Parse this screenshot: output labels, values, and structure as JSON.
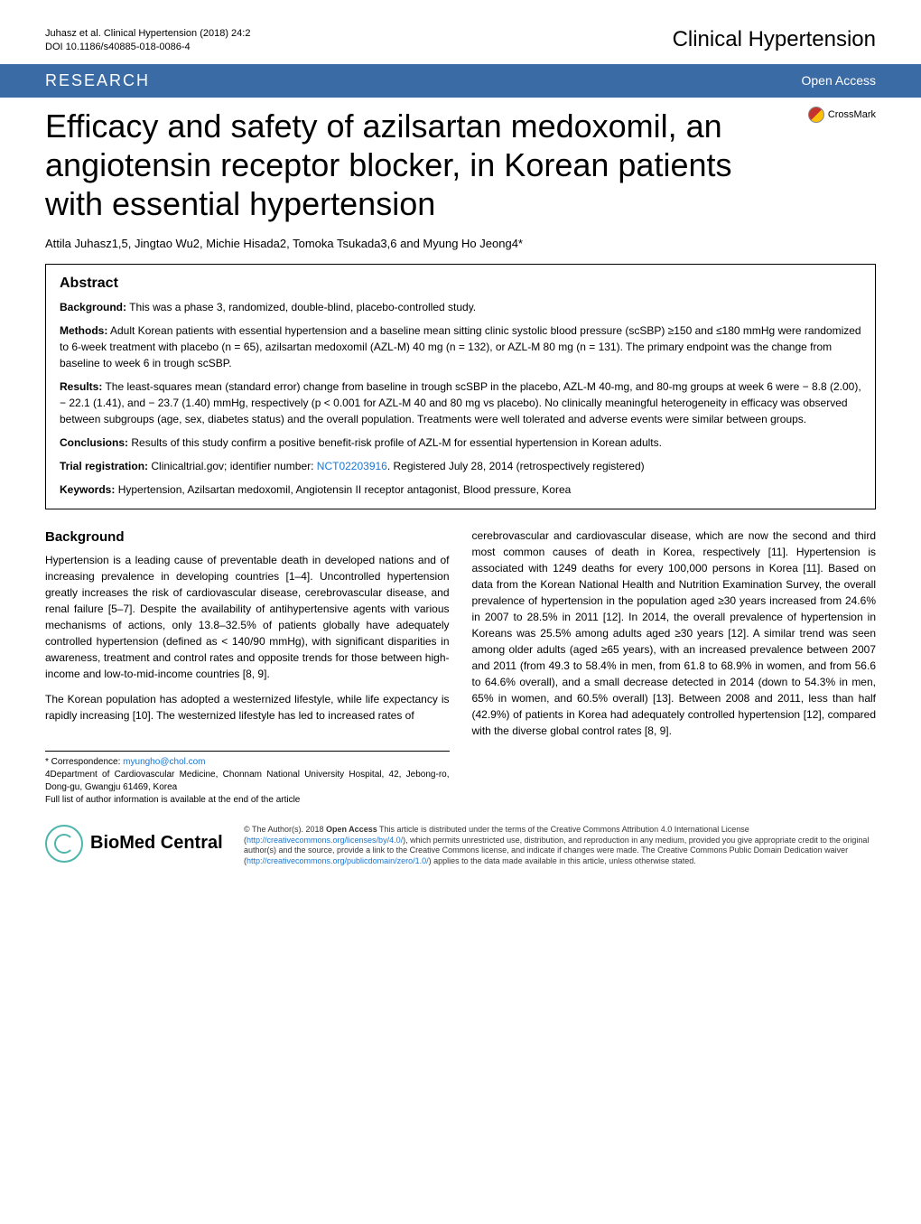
{
  "header": {
    "citation": "Juhasz et al. Clinical Hypertension  (2018) 24:2",
    "doi": "DOI 10.1186/s40885-018-0086-4",
    "journal": "Clinical Hypertension"
  },
  "bar": {
    "research": "RESEARCH",
    "openaccess": "Open Access"
  },
  "crossmark": "CrossMark",
  "title": "Efficacy and safety of azilsartan medoxomil, an angiotensin receptor blocker, in Korean patients with essential hypertension",
  "authors": "Attila Juhasz1,5, Jingtao Wu2, Michie Hisada2, Tomoka Tsukada3,6 and Myung Ho Jeong4*",
  "abstract": {
    "heading": "Abstract",
    "background_label": "Background:",
    "background_text": " This was a phase 3, randomized, double-blind, placebo-controlled study.",
    "methods_label": "Methods:",
    "methods_text": " Adult Korean patients with essential hypertension and a baseline mean sitting clinic systolic blood pressure (scSBP) ≥150 and ≤180 mmHg were randomized to 6-week treatment with placebo (n = 65), azilsartan medoxomil (AZL-M) 40 mg (n = 132), or AZL-M 80 mg (n = 131). The primary endpoint was the change from baseline to week 6 in trough scSBP.",
    "results_label": "Results:",
    "results_text": " The least-squares mean (standard error) change from baseline in trough scSBP in the placebo, AZL-M 40-mg, and 80-mg groups at week 6 were − 8.8 (2.00), − 22.1 (1.41), and − 23.7 (1.40) mmHg, respectively (p < 0.001 for AZL-M 40 and 80 mg vs placebo). No clinically meaningful heterogeneity in efficacy was observed between subgroups (age, sex, diabetes status) and the overall population. Treatments were well tolerated and adverse events were similar between groups.",
    "conclusions_label": "Conclusions:",
    "conclusions_text": " Results of this study confirm a positive benefit-risk profile of AZL-M for essential hypertension in Korean adults.",
    "trial_label": "Trial registration:",
    "trial_text_before": " Clinicaltrial.gov; identifier number: ",
    "trial_link": "NCT02203916",
    "trial_text_after": ". Registered July 28, 2014 (retrospectively registered)",
    "keywords_label": "Keywords:",
    "keywords_text": " Hypertension, Azilsartan medoxomil, Angiotensin II receptor antagonist, Blood pressure, Korea"
  },
  "body": {
    "background_heading": "Background",
    "left_p1": "Hypertension is a leading cause of preventable death in developed nations and of increasing prevalence in developing countries [1–4]. Uncontrolled hypertension greatly increases the risk of cardiovascular disease, cerebrovascular disease, and renal failure [5–7]. Despite the availability of antihypertensive agents with various mechanisms of actions, only 13.8–32.5% of patients globally have adequately controlled hypertension (defined as < 140/90 mmHg), with significant disparities in awareness, treatment and control rates and opposite trends for those between high-income and low-to-mid-income countries [8, 9].",
    "left_p2": "The Korean population has adopted a westernized lifestyle, while life expectancy is rapidly increasing [10]. The westernized lifestyle has led to increased rates of",
    "right_p1": "cerebrovascular and cardiovascular disease, which are now the second and third most common causes of death in Korea, respectively [11]. Hypertension is associated with 1249 deaths for every 100,000 persons in Korea [11]. Based on data from the Korean National Health and Nutrition Examination Survey, the overall prevalence of hypertension in the population aged ≥30 years increased from 24.6% in 2007 to 28.5% in 2011 [12]. In 2014, the overall prevalence of hypertension in Koreans was 25.5% among adults aged ≥30 years [12]. A similar trend was seen among older adults (aged ≥65 years), with an increased prevalence between 2007 and 2011 (from 49.3 to 58.4% in men, from 61.8 to 68.9% in women, and from 56.6 to 64.6% overall), and a small decrease detected in 2014 (down to 54.3% in men, 65% in women, and 60.5% overall) [13]. Between 2008 and 2011, less than half (42.9%) of patients in Korea had adequately controlled hypertension [12], compared with the diverse global control rates [8, 9]."
  },
  "correspondence": {
    "line1_before": "* Correspondence: ",
    "email": "myungho@chol.com",
    "line2": "4Department of Cardiovascular Medicine, Chonnam National University Hospital, 42, Jebong-ro, Dong-gu, Gwangju 61469, Korea",
    "line3": "Full list of author information is available at the end of the article"
  },
  "footer": {
    "logo_bio": "BioMed",
    "logo_central": " Central",
    "license_before": "© The Author(s). 2018 ",
    "license_bold": "Open Access",
    "license_mid1": " This article is distributed under the terms of the Creative Commons Attribution 4.0 International License (",
    "license_link1": "http://creativecommons.org/licenses/by/4.0/",
    "license_mid2": "), which permits unrestricted use, distribution, and reproduction in any medium, provided you give appropriate credit to the original author(s) and the source, provide a link to the Creative Commons license, and indicate if changes were made. The Creative Commons Public Domain Dedication waiver (",
    "license_link2": "http://creativecommons.org/publicdomain/zero/1.0/",
    "license_after": ") applies to the data made available in this article, unless otherwise stated."
  },
  "colors": {
    "bar_bg": "#3b6ba5",
    "link": "#1976d2",
    "bmc_teal": "#4db6ac"
  }
}
